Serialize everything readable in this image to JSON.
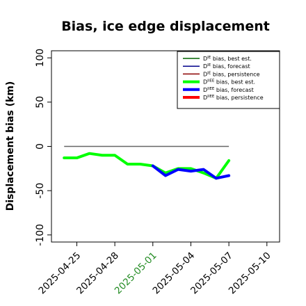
{
  "chart_data": {
    "type": "line",
    "title": "Bias, ice edge displacement",
    "ylabel": "Displacement bias (km)",
    "xlabel": "",
    "ylim": [
      -108,
      108
    ],
    "xlim": [
      "2025-04-23",
      "2025-05-11"
    ],
    "y_ticks": [
      -100,
      -50,
      0,
      50,
      100
    ],
    "x_ticks": [
      {
        "date": "2025-04-25",
        "label": "2025-04-25",
        "color": "#000000"
      },
      {
        "date": "2025-04-28",
        "label": "2025-04-28",
        "color": "#000000"
      },
      {
        "date": "2025-05-01",
        "label": "2025-05-01",
        "color": "#228B22"
      },
      {
        "date": "2025-05-04",
        "label": "2025-05-04",
        "color": "#000000"
      },
      {
        "date": "2025-05-07",
        "label": "2025-05-07",
        "color": "#000000"
      },
      {
        "date": "2025-05-10",
        "label": "2025-05-10",
        "color": "#000000"
      }
    ],
    "legend_position": "top-right",
    "zero_line": {
      "x": [
        "2025-04-24",
        "2025-05-07"
      ],
      "y": 0,
      "color": "#666666"
    },
    "series": [
      {
        "name": "D^IE bias, best est.",
        "color": "#006400",
        "thick": false,
        "x": [],
        "y": []
      },
      {
        "name": "D^IE bias, forecast",
        "color": "#00008b",
        "thick": false,
        "x": [],
        "y": []
      },
      {
        "name": "D^IE bias, persistence",
        "color": "#8b0000",
        "thick": false,
        "x": [],
        "y": []
      },
      {
        "name": "D^IIEE bias, best est.",
        "color": "#00ff00",
        "thick": true,
        "x": [
          "2025-04-24",
          "2025-04-25",
          "2025-04-26",
          "2025-04-27",
          "2025-04-28",
          "2025-04-29",
          "2025-04-30",
          "2025-05-01",
          "2025-05-02",
          "2025-05-03",
          "2025-05-04",
          "2025-05-05",
          "2025-05-06",
          "2025-05-07"
        ],
        "y": [
          -13,
          -13,
          -8,
          -10,
          -10,
          -20,
          -20,
          -22,
          -30,
          -25,
          -25,
          -30,
          -36,
          -16
        ]
      },
      {
        "name": "D^IIEE bias, forecast",
        "color": "#0000ff",
        "thick": true,
        "x": [
          "2025-05-01",
          "2025-05-02",
          "2025-05-03",
          "2025-05-04",
          "2025-05-05",
          "2025-05-06",
          "2025-05-07"
        ],
        "y": [
          -22,
          -33,
          -26,
          -28,
          -26,
          -36,
          -33
        ]
      },
      {
        "name": "D^IIEE bias, persistence",
        "color": "#ff0000",
        "thick": true,
        "x": [],
        "y": []
      }
    ]
  }
}
